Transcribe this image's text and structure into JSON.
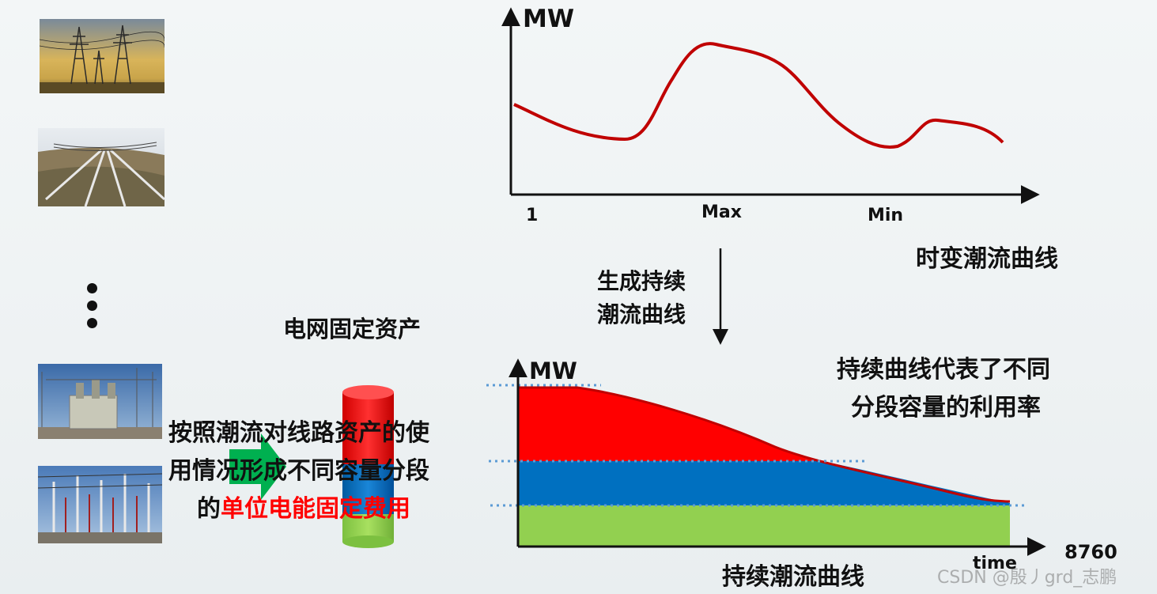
{
  "labels": {
    "mw_top": "MW",
    "tick_1": "1",
    "tick_max": "Max",
    "tick_min": "Min",
    "top_curve_title": "时变潮流曲线",
    "arrow_text_line1": "生成持续",
    "arrow_text_line2": "潮流曲线",
    "asset_title": "电网固定资产",
    "mw_bottom": "MW",
    "duration_note_line1": "持续曲线代表了不同",
    "duration_note_line2": "分段容量的利用率",
    "left_text_line1": "按照潮流对线路资产的使",
    "left_text_line2": "用情况形成不同容量分段",
    "left_text_line3_prefix": "的",
    "left_text_line3_highlight": "单位电能固定费用",
    "x_end": "8760",
    "x_time": "time",
    "bottom_curve_title": "持续潮流曲线",
    "watermark": "CSDN @殷丿grd_志鹏"
  },
  "colors": {
    "curve_red": "#c00000",
    "band_red": "#ff0000",
    "band_blue": "#0070c0",
    "band_green": "#92d050",
    "highlight_red": "#ff0000",
    "dotted_blue": "#5b9bd5",
    "arrow_green": "#00b050"
  },
  "photos": [
    "transmission-towers-sunset-photo",
    "transmission-lines-landscape-photo",
    "substation-transformer-photo",
    "substation-switchyard-photo"
  ]
}
